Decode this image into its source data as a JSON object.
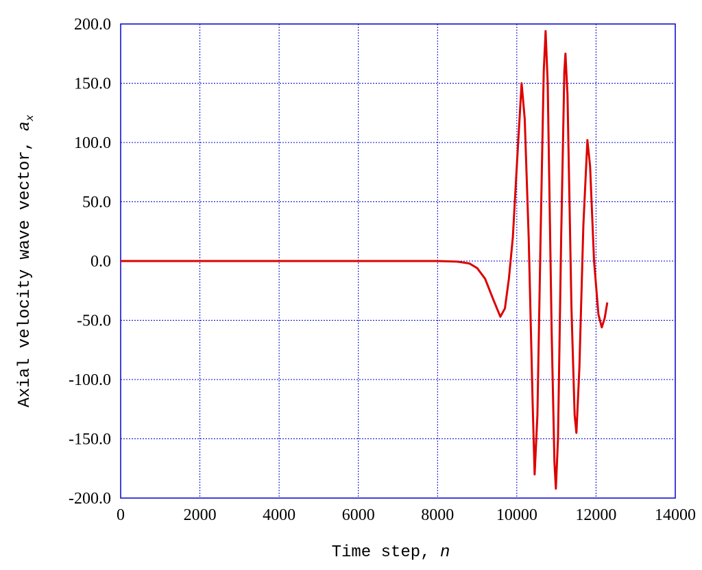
{
  "chart_data": {
    "type": "line",
    "x_label": "Time step,",
    "x_label_var": "n",
    "y_label": "Axial velocity wave vector,",
    "y_label_var": "a",
    "y_label_sub": "x",
    "x": [
      0,
      2000,
      4000,
      6000,
      8000,
      8500,
      8800,
      9000,
      9200,
      9400,
      9585,
      9700,
      9800,
      9900,
      10000,
      10121,
      10200,
      10300,
      10400,
      10450,
      10520,
      10600,
      10680,
      10727,
      10780,
      10880,
      10950,
      10986,
      11040,
      11120,
      11200,
      11228,
      11280,
      11380,
      11460,
      11505,
      11580,
      11680,
      11782,
      11850,
      11950,
      12060,
      12145,
      12220,
      12284
    ],
    "series": [
      {
        "color": "#dd0000",
        "values": [
          0,
          0,
          0,
          0,
          0,
          -0.5,
          -2,
          -6,
          -15,
          -32,
          -47,
          -40,
          -15,
          20,
          80,
          150,
          120,
          20,
          -120,
          -180,
          -130,
          20,
          160,
          194,
          150,
          -60,
          -170,
          -192,
          -150,
          20,
          160,
          175,
          140,
          -40,
          -130,
          -145,
          -90,
          30,
          102,
          80,
          0,
          -45,
          -56,
          -48,
          -35
        ]
      }
    ],
    "xlim": [
      0,
      14000
    ],
    "xticks": [
      0,
      2000,
      4000,
      6000,
      8000,
      10000,
      12000,
      14000
    ],
    "ylim": [
      -200,
      200
    ],
    "yticks": [
      {
        "value": -200,
        "label": "-200.0"
      },
      {
        "value": -150,
        "label": "-150.0"
      },
      {
        "value": -100,
        "label": "-100.0"
      },
      {
        "value": -50,
        "label": "-50.0"
      },
      {
        "value": 0,
        "label": "0.0"
      },
      {
        "value": 50,
        "label": "50.0"
      },
      {
        "value": 100,
        "label": "100.0"
      },
      {
        "value": 150,
        "label": "150.0"
      },
      {
        "value": 200,
        "label": "200.0"
      }
    ],
    "grid": true,
    "grid_color": "#0000cc"
  }
}
